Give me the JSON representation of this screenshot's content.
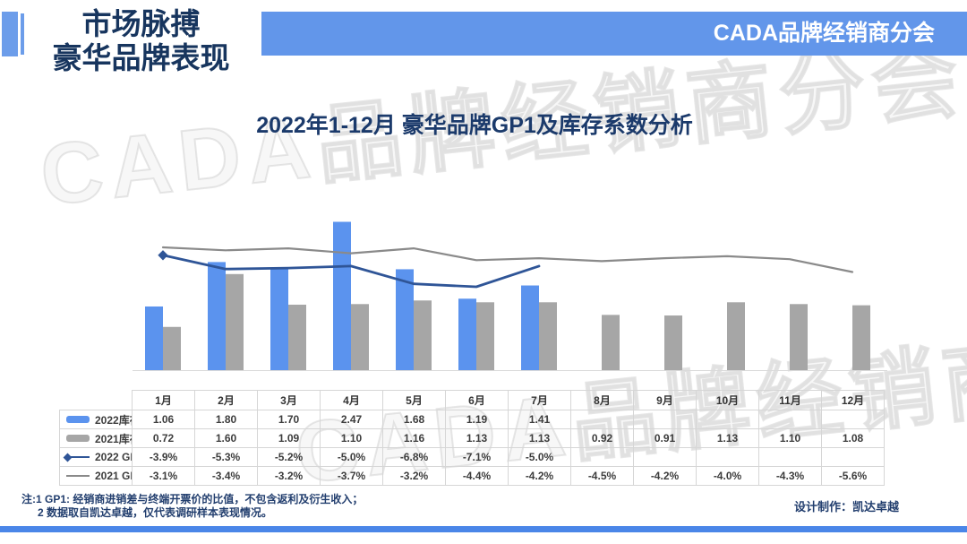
{
  "header": {
    "title_line1": "市场脉搏",
    "title_line2": "豪华品牌表现",
    "banner": "CADA品牌经销商分会"
  },
  "watermark_text": "CADA品牌经销商分会",
  "chart_data": {
    "type": "bar",
    "combo_of": [
      "bar",
      "line"
    ],
    "title": "2022年1-12月 豪华品牌GP1及库存系数分析",
    "xlabel": "",
    "ylabel": "",
    "grid": false,
    "legend_position": "table-left-column",
    "categories": [
      "1月",
      "2月",
      "3月",
      "4月",
      "5月",
      "6月",
      "7月",
      "8月",
      "9月",
      "10月",
      "11月",
      "12月"
    ],
    "series": [
      {
        "name": "2022库存",
        "chart_type": "bar",
        "color": "#5B93EE",
        "values": [
          1.06,
          1.8,
          1.7,
          2.47,
          1.68,
          1.19,
          1.41,
          null,
          null,
          null,
          null,
          null
        ]
      },
      {
        "name": "2021库存",
        "chart_type": "bar",
        "color": "#A6A6A6",
        "values": [
          0.72,
          1.6,
          1.09,
          1.1,
          1.16,
          1.13,
          1.13,
          0.92,
          0.91,
          1.13,
          1.1,
          1.08
        ]
      },
      {
        "name": "2022 GP1",
        "chart_type": "line",
        "unit": "%",
        "color": "#2F5597",
        "legend_marker": "diamond-left",
        "values": [
          -3.9,
          -5.3,
          -5.2,
          -5.0,
          -6.8,
          -7.1,
          -5.0,
          null,
          null,
          null,
          null,
          null
        ]
      },
      {
        "name": "2021 GP1",
        "chart_type": "line",
        "unit": "%",
        "color": "#8A8A8A",
        "legend_marker": "none",
        "values": [
          -3.1,
          -3.4,
          -3.2,
          -3.7,
          -3.2,
          -4.4,
          -4.2,
          -4.5,
          -4.2,
          -4.0,
          -4.3,
          -5.6
        ]
      }
    ],
    "bar_axis_implied_range": [
      0,
      2.6
    ],
    "line_axis_implied_range_pct": [
      -8,
      -3
    ]
  },
  "footer": {
    "note_line1": "注:1 GP1: 经销商进销差与终端开票价的比值，不包含返利及衍生收入；",
    "note_line2": "2 数据取自凯达卓越，仅代表调研样本表现情况。",
    "credit": "设计制作：凯达卓越"
  },
  "colors": {
    "banner_bg": "#6296EA",
    "accent_bar": "#6C9DEA",
    "footer_bar": "#4A86E8",
    "title_navy": "#17355E",
    "chart_title_navy": "#1B3A6B",
    "bar_2022": "#5B93EE",
    "bar_2021": "#A6A6A6",
    "line_2022": "#2F5597",
    "line_2021": "#8A8A8A",
    "table_border": "#D6D6D6",
    "table_text": "#3D3D3D"
  }
}
